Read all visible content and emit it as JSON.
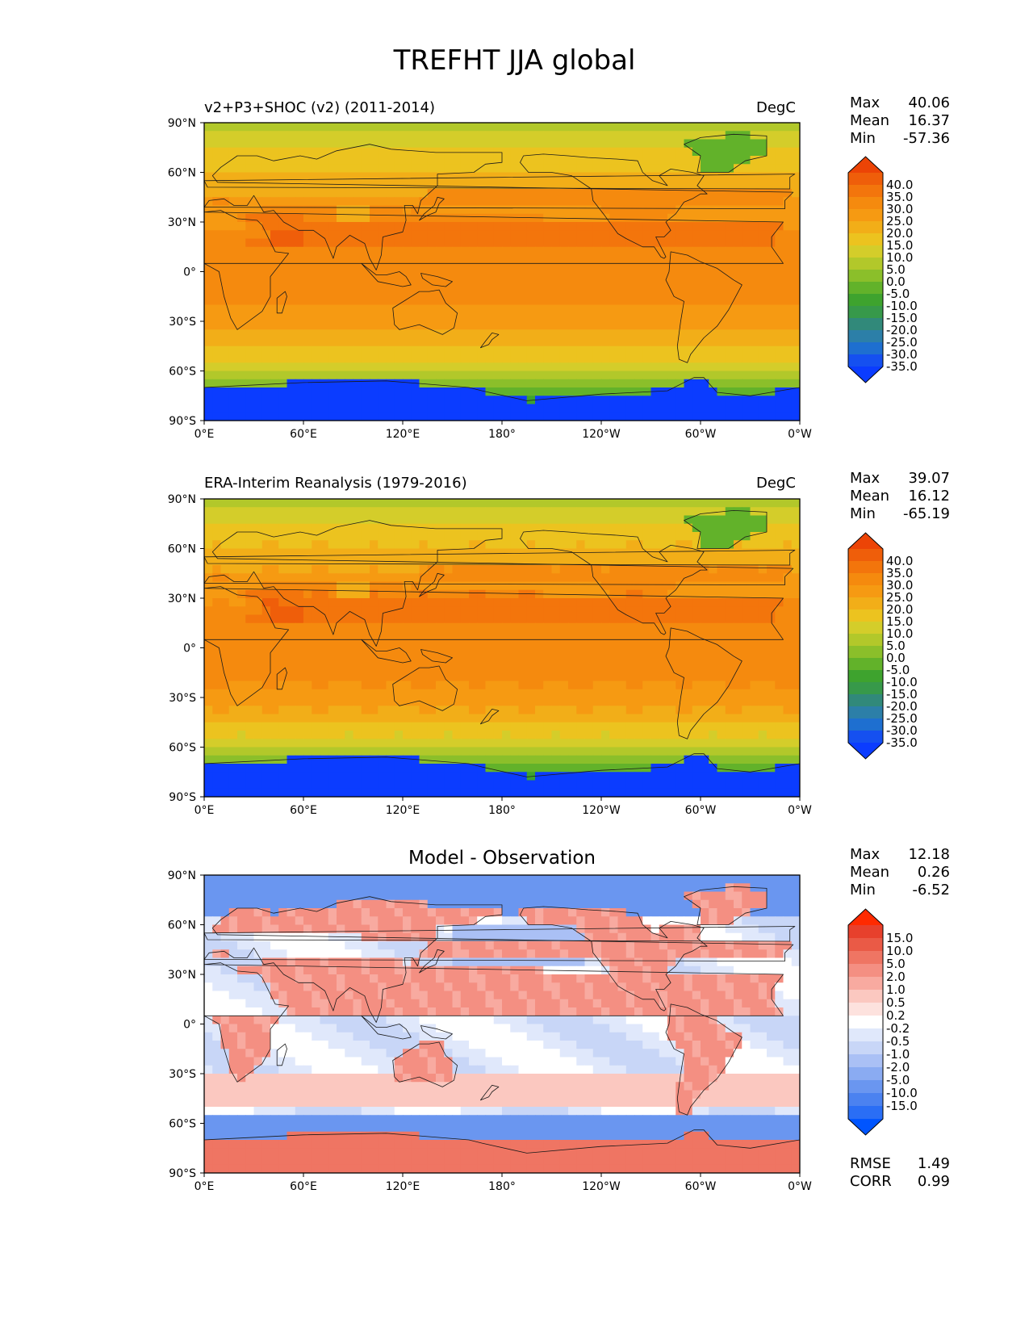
{
  "title": "TREFHT JJA global",
  "colors": {
    "temp_scale": [
      "#0b3cff",
      "#1550f0",
      "#1e6fd0",
      "#2c7fa8",
      "#31897a",
      "#37994a",
      "#3ea32e",
      "#62b22a",
      "#8bbf2a",
      "#b2c82a",
      "#d4cd2a",
      "#ecc31f",
      "#f2ae18",
      "#f69a12",
      "#f58a0e",
      "#f3750c",
      "#ef5e0a",
      "#ec4406"
    ],
    "diff_scale": [
      "#0055ff",
      "#2a6ef5",
      "#4b82f0",
      "#6a96f0",
      "#8aabf2",
      "#aac0f5",
      "#c8d6f7",
      "#e0e8fb",
      "#ffffff",
      "#fde2de",
      "#fbc8c0",
      "#f8aaa0",
      "#f48f82",
      "#ef7563",
      "#ea5a46",
      "#e7402c",
      "#ff2a00"
    ]
  },
  "panels": [
    {
      "id": "model",
      "left_label": "v2+P3+SHOC (v2) (2011-2014)",
      "right_label": "DegC",
      "stats": {
        "max_label": "Max",
        "max": "40.06",
        "mean_label": "Mean",
        "mean": "16.37",
        "min_label": "Min",
        "min": "-57.36"
      },
      "colorbar_ticks": [
        "40.0",
        "35.0",
        "30.0",
        "25.0",
        "20.0",
        "15.0",
        "10.0",
        "5.0",
        "0.0",
        "-5.0",
        "-10.0",
        "-15.0",
        "-20.0",
        "-25.0",
        "-30.0",
        "-35.0"
      ]
    },
    {
      "id": "obs",
      "left_label": "ERA-Interim Reanalysis (1979-2016)",
      "right_label": "DegC",
      "stats": {
        "max_label": "Max",
        "max": "39.07",
        "mean_label": "Mean",
        "mean": "16.12",
        "min_label": "Min",
        "min": "-65.19"
      },
      "colorbar_ticks": [
        "40.0",
        "35.0",
        "30.0",
        "25.0",
        "20.0",
        "15.0",
        "10.0",
        "5.0",
        "0.0",
        "-5.0",
        "-10.0",
        "-15.0",
        "-20.0",
        "-25.0",
        "-30.0",
        "-35.0"
      ]
    },
    {
      "id": "diff",
      "center_label": "Model - Observation",
      "stats": {
        "max_label": "Max",
        "max": "12.18",
        "mean_label": "Mean",
        "mean": "0.26",
        "min_label": "Min",
        "min": "-6.52"
      },
      "colorbar_ticks": [
        "15.0",
        "10.0",
        "5.0",
        "2.0",
        "1.0",
        "0.5",
        "0.2",
        "-0.2",
        "-0.5",
        "-1.0",
        "-2.0",
        "-5.0",
        "-10.0",
        "-15.0"
      ],
      "extra": {
        "rmse_label": "RMSE",
        "rmse": "1.49",
        "corr_label": "CORR",
        "corr": "0.99"
      }
    }
  ],
  "axes": {
    "lat_ticks": [
      "90°N",
      "60°N",
      "30°N",
      "0°",
      "30°S",
      "60°S",
      "90°S"
    ],
    "lon_ticks": [
      "0°E",
      "60°E",
      "120°E",
      "180°",
      "120°W",
      "60°W",
      "0°W"
    ]
  }
}
